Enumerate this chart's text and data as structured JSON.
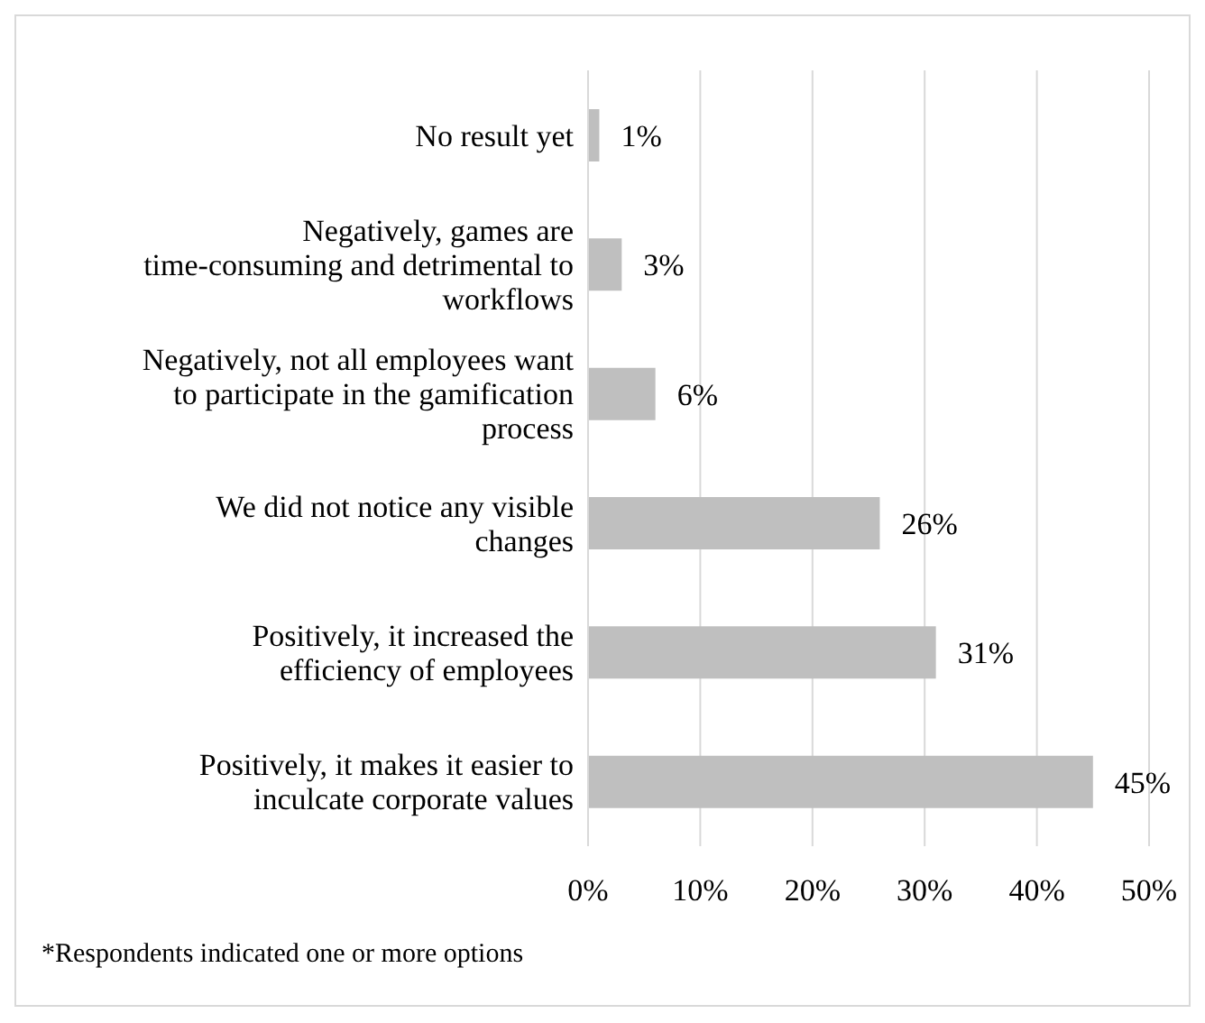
{
  "chart_data": {
    "type": "bar",
    "orientation": "horizontal",
    "categories": [
      "No result yet",
      "Negatively, games are time-consuming and detrimental to workflows",
      "Negatively, not all employees want to participate in the gamification process",
      "We did not notice any visible changes",
      "Positively, it increased the efficiency of employees",
      "Positively, it makes it easier to inculcate corporate values"
    ],
    "values": [
      1,
      3,
      6,
      26,
      31,
      45
    ],
    "value_labels": [
      "1%",
      "3%",
      "6%",
      "26%",
      "31%",
      "45%"
    ],
    "color": "#bfbfbf",
    "xlim": [
      0,
      50
    ],
    "xticks": [
      {
        "value": 0,
        "label": "0%"
      },
      {
        "value": 10,
        "label": "10%"
      },
      {
        "value": 20,
        "label": "20%"
      },
      {
        "value": 30,
        "label": "30%"
      },
      {
        "value": 40,
        "label": "40%"
      },
      {
        "value": 50,
        "label": "50%"
      }
    ],
    "grid": "x",
    "annotations": [
      "*Respondents indicated one or more options"
    ]
  }
}
